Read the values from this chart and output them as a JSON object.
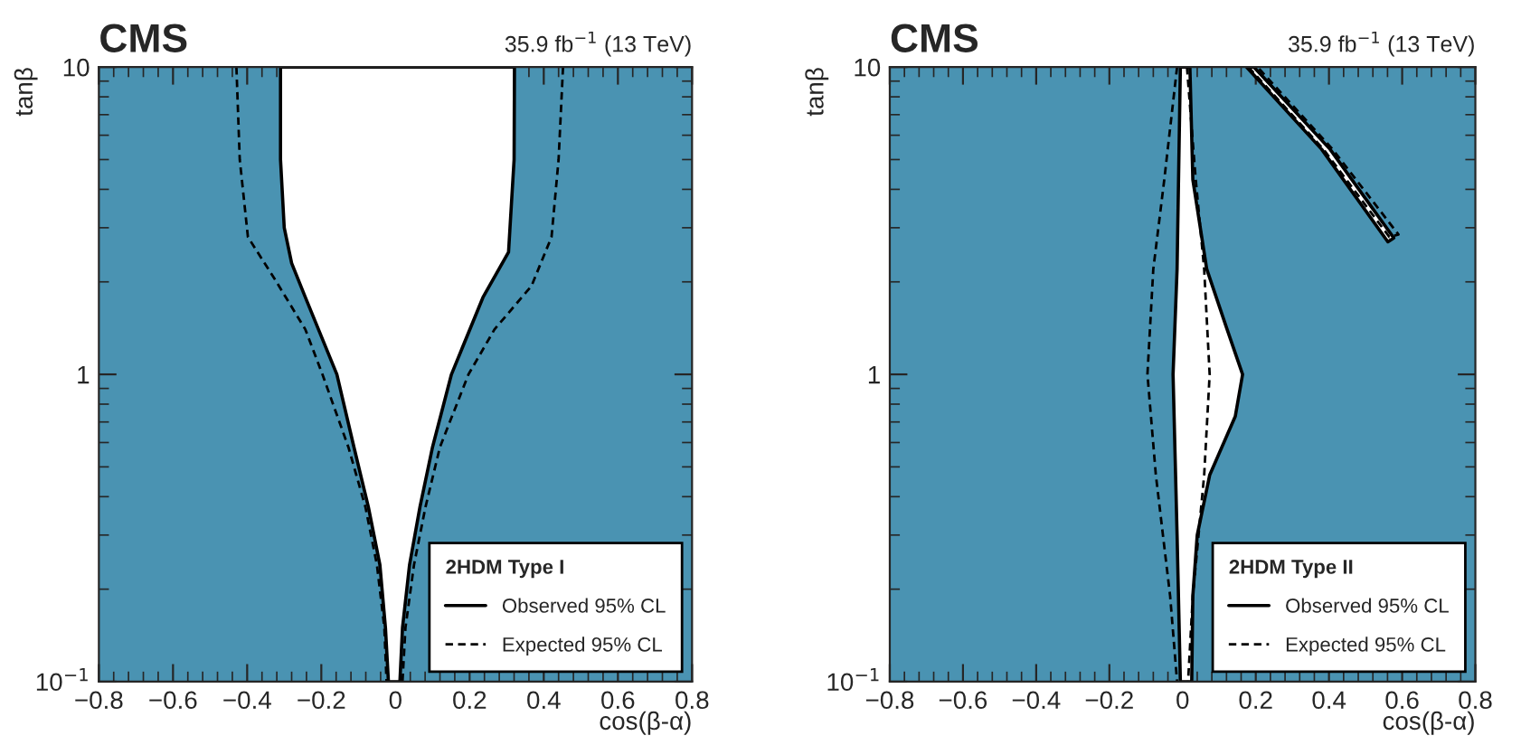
{
  "chart_data": [
    {
      "type": "line",
      "title": "CMS",
      "subtitle": "35.9 fb$^{−1}$ (13 TeV)",
      "xlabel": "cos(β-α)",
      "ylabel": "tanβ",
      "legend_title": "2HDM Type I",
      "legend": "bottom right",
      "log": "y",
      "xlim": [
        -0.8,
        0.8
      ],
      "xticks": [
        {
          "value": -0.8,
          "label": "−0.8"
        },
        {
          "value": -0.6,
          "label": "−0.6"
        },
        {
          "value": -0.4,
          "label": "−0.4"
        },
        {
          "value": -0.2,
          "label": "−0.2"
        },
        0,
        0.2,
        0.4,
        0.6,
        0.8
      ],
      "ylim": [
        0.1,
        10
      ],
      "yticks": [
        {
          "value": 0.1,
          "label": "10$^{−1}$"
        },
        1,
        10
      ],
      "bands": [
        {
          "axis": "x",
          "from": -0.8,
          "to": 0.8,
          "color": "#4a93b2"
        }
      ],
      "series": [
        {
          "name": "Observed 95% CL",
          "type": "area",
          "line_style": "solid",
          "color": "#000000",
          "x": [
            -0.31,
            -0.31,
            -0.3,
            -0.28,
            -0.243,
            -0.158,
            -0.112,
            -0.073,
            -0.042,
            -0.027,
            -0.019,
            0.012,
            0.019,
            0.038,
            0.066,
            0.1,
            0.151,
            0.236,
            0.305,
            0.32,
            0.321
          ],
          "values": [
            10,
            5,
            3,
            2.3,
            1.78,
            1,
            0.58,
            0.37,
            0.24,
            0.15,
            0.1,
            0.1,
            0.15,
            0.24,
            0.37,
            0.58,
            1,
            1.78,
            2.5,
            5,
            10
          ]
        },
        {
          "name": "Expected 95% CL",
          "line_style": "dashed",
          "color": "#000000",
          "x": [
            -0.429,
            -0.42,
            -0.398,
            -0.321,
            -0.243,
            -0.197,
            -0.127,
            -0.081,
            -0.05,
            -0.03,
            -0.024
          ],
          "values": [
            10,
            5,
            2.8,
            2.0,
            1.4,
            1,
            0.58,
            0.37,
            0.24,
            0.15,
            0.1
          ]
        },
        {
          "line_style": "dashed",
          "color": "#000000",
          "x": [
            0.452,
            0.44,
            0.421,
            0.367,
            0.267,
            0.197,
            0.12,
            0.081,
            0.05,
            0.027,
            0.019
          ],
          "values": [
            10,
            5,
            2.8,
            1.94,
            1.4,
            1,
            0.58,
            0.37,
            0.24,
            0.15,
            0.1
          ]
        }
      ]
    },
    {
      "type": "line",
      "title": "CMS",
      "subtitle": "35.9 fb$^{−1}$ (13 TeV)",
      "xlabel": "cos(β-α)",
      "ylabel": "tanβ",
      "legend_title": "2HDM Type II",
      "legend": "bottom right",
      "log": "y",
      "xlim": [
        -0.8,
        0.8
      ],
      "xticks": [
        {
          "value": -0.8,
          "label": "−0.8"
        },
        {
          "value": -0.6,
          "label": "−0.6"
        },
        {
          "value": -0.4,
          "label": "−0.4"
        },
        {
          "value": -0.2,
          "label": "−0.2"
        },
        0,
        0.2,
        0.4,
        0.6,
        0.8
      ],
      "ylim": [
        0.1,
        10
      ],
      "yticks": [
        {
          "value": 0.1,
          "label": "10$^{−1}$"
        },
        1,
        10
      ],
      "bands": [
        {
          "axis": "x",
          "from": -0.8,
          "to": 0.8,
          "color": "#4a93b2"
        }
      ],
      "series": [
        {
          "name": "Observed 95% CL",
          "type": "area",
          "line_style": "solid",
          "color": "#000000",
          "x": [
            -0.006,
            -0.015,
            -0.026,
            -0.015,
            -0.006,
            0.025,
            0.028,
            0.04,
            0.074,
            0.144,
            0.164,
            0.12,
            0.066,
            0.028,
            0.02
          ],
          "values": [
            10,
            2.2,
            1,
            0.3,
            0.1,
            0.1,
            0.19,
            0.3,
            0.47,
            0.73,
            1,
            1.42,
            2.2,
            4.3,
            10
          ]
        },
        {
          "type": "area",
          "line_style": "solid",
          "color": "#000000",
          "x": [
            0.175,
            0.38,
            0.561,
            0.577,
            0.403,
            0.195
          ],
          "values": [
            10,
            5.4,
            2.7,
            2.78,
            5.4,
            10
          ]
        },
        {
          "name": "Expected 95% CL",
          "line_style": "dashed",
          "color": "#000000",
          "x": [
            -0.015,
            -0.05,
            -0.08,
            -0.096,
            -0.073,
            -0.034,
            -0.015
          ],
          "values": [
            10,
            4.3,
            2.2,
            1,
            0.47,
            0.19,
            0.1
          ]
        },
        {
          "line_style": "dashed",
          "color": "#000000",
          "x": [
            0.012,
            0.036,
            0.059,
            0.074,
            0.059,
            0.028,
            0.015
          ],
          "values": [
            10,
            4.3,
            2.2,
            1,
            0.47,
            0.19,
            0.1
          ]
        },
        {
          "line_style": "dashed",
          "color": "#000000",
          "x": [
            0.18,
            0.385,
            0.565,
            0.59,
            0.41,
            0.205
          ],
          "values": [
            10,
            5.4,
            2.8,
            2.85,
            5.4,
            10
          ]
        }
      ]
    }
  ]
}
